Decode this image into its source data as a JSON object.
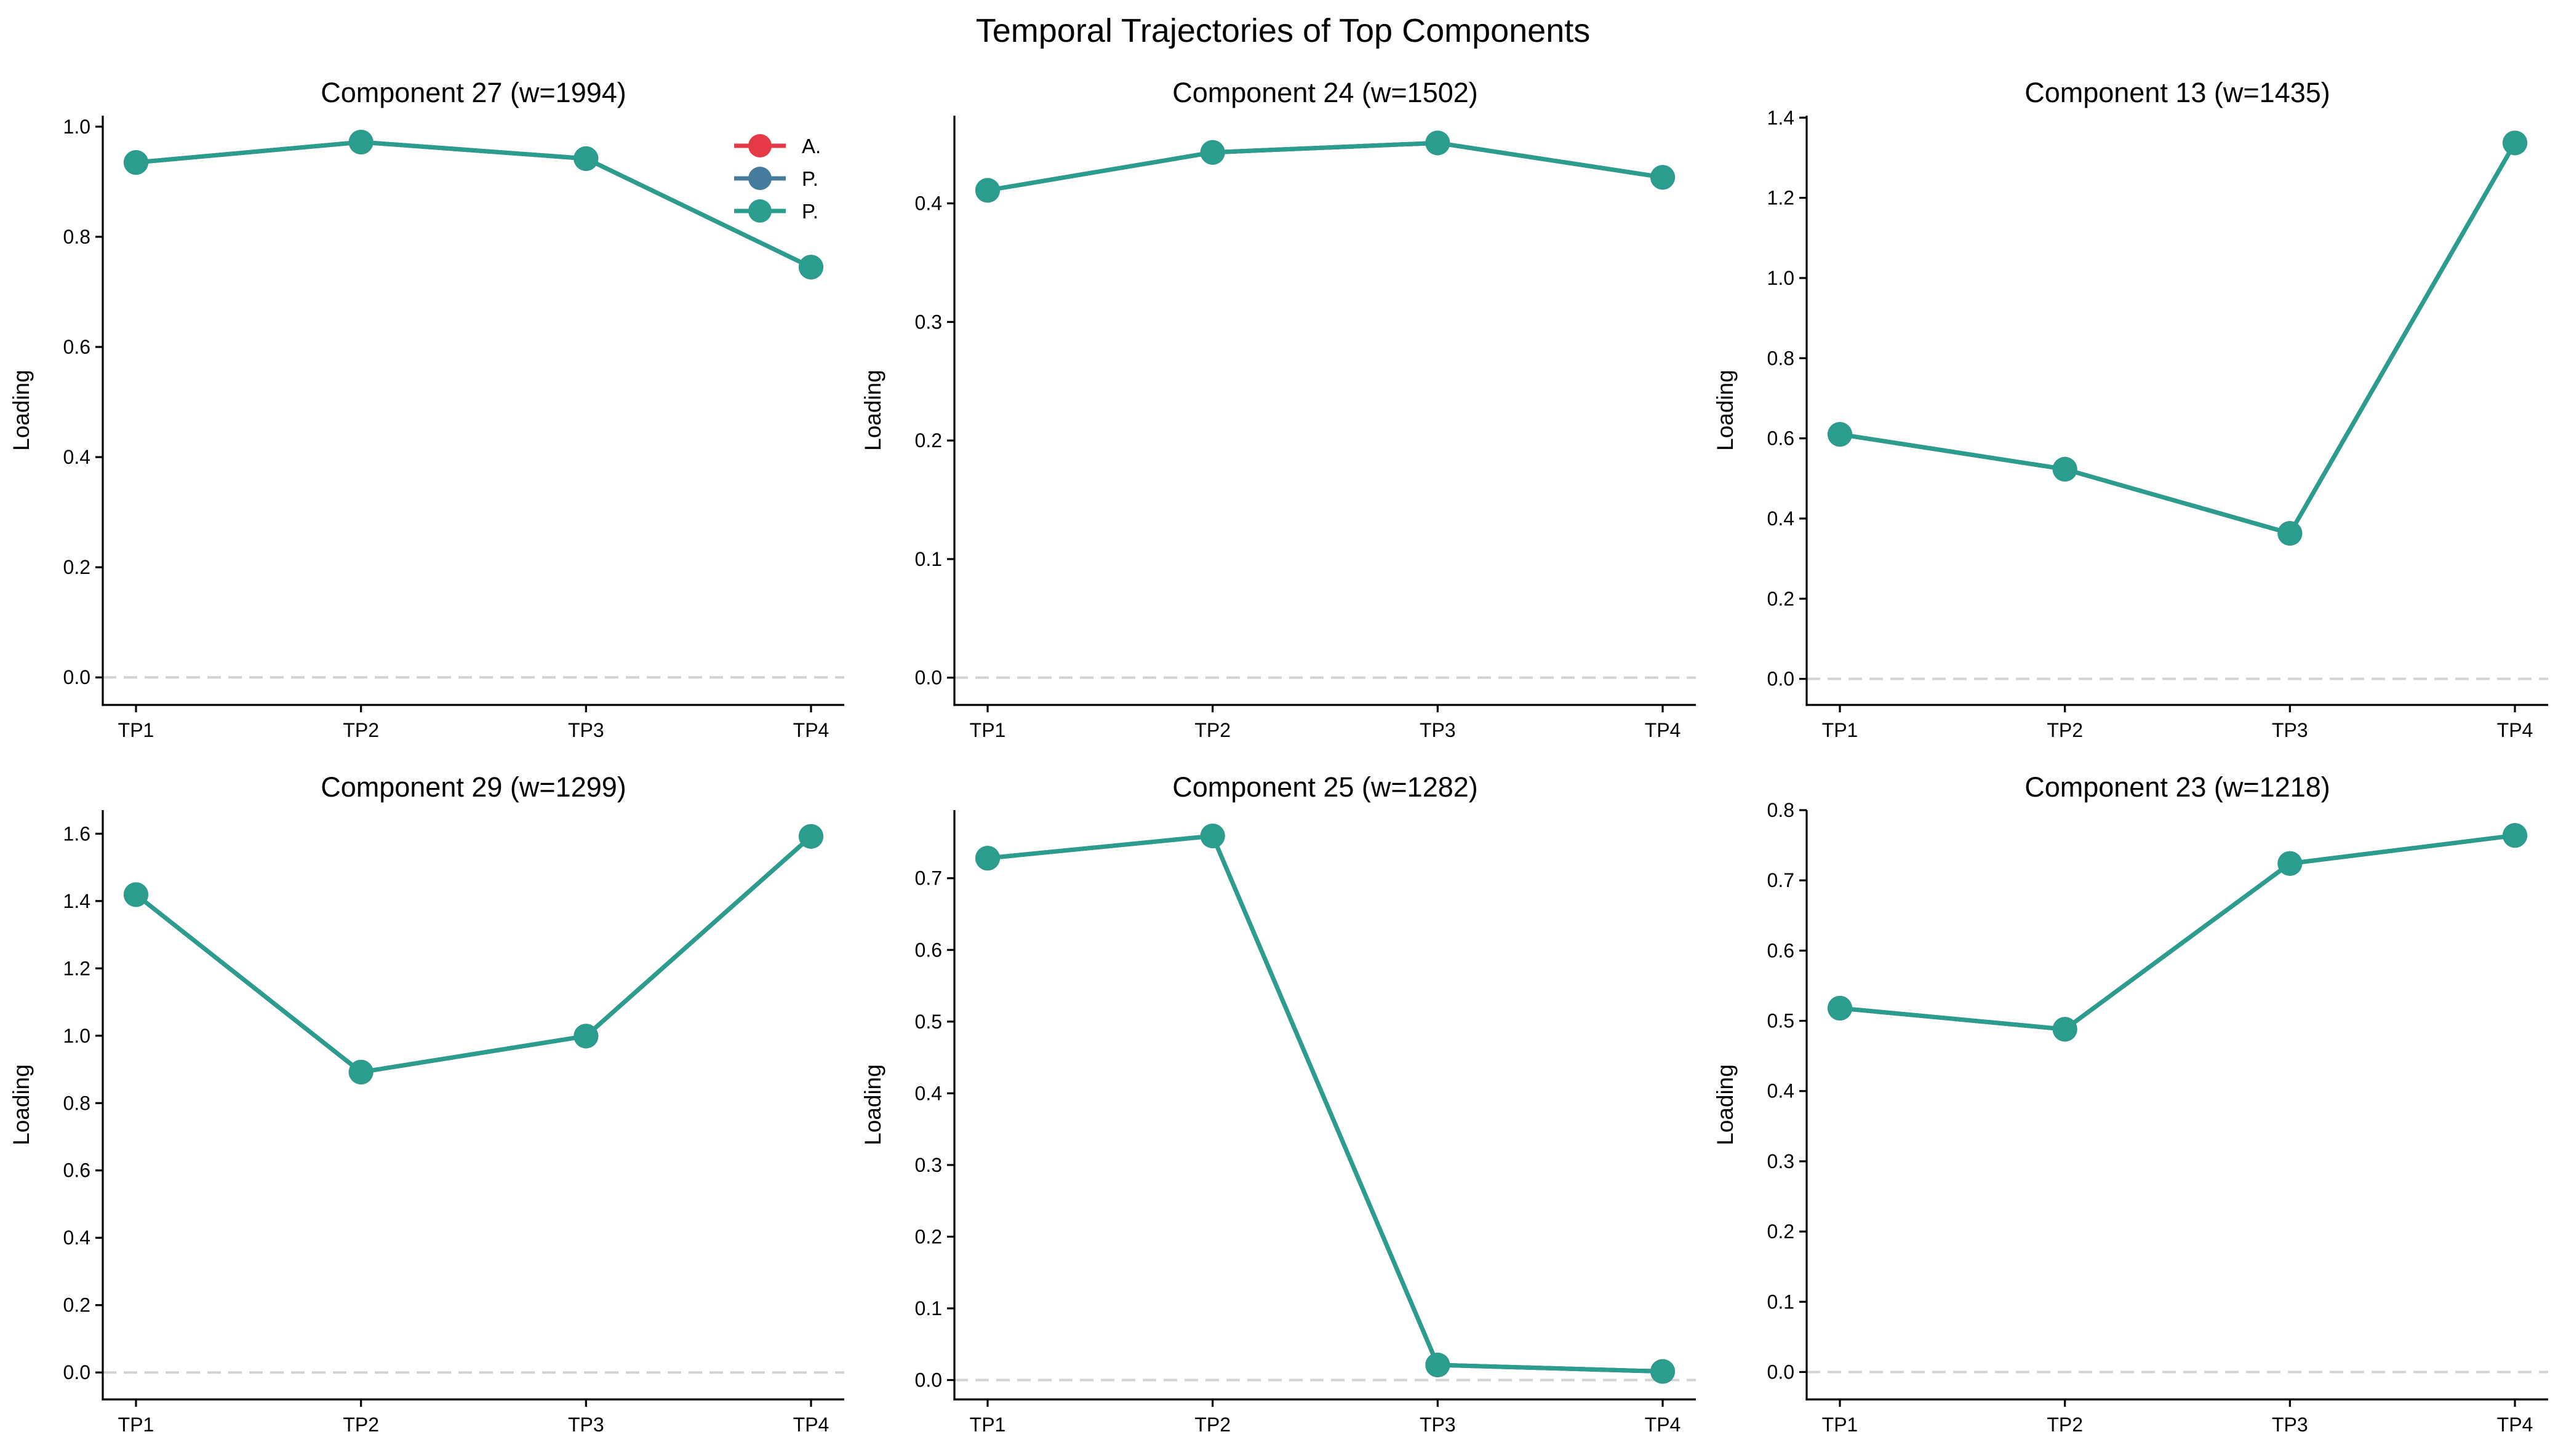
{
  "chart_data": {
    "type": "line",
    "title": "Temporal Trajectories of Top Components",
    "layout": "2x3 grid",
    "legend": {
      "placement": "upper-right of first panel",
      "entries": [
        {
          "label": "A.",
          "color": "#E63946"
        },
        {
          "label": "P.",
          "color": "#457B9D"
        },
        {
          "label": "P.",
          "color": "#2A9D8F"
        }
      ]
    },
    "reference_line": {
      "y": 0,
      "style": "dashed",
      "color": "#D3D3D3"
    },
    "panels": [
      {
        "title": "Component 27 (w=1994)",
        "xlabel": "",
        "ylabel": "Loading",
        "categories": [
          "TP1",
          "TP2",
          "TP3",
          "TP4"
        ],
        "yticks": [
          0.0,
          0.2,
          0.4,
          0.6,
          0.8,
          1.0
        ],
        "ytick_labels": [
          "0.0",
          "0.2",
          "0.4",
          "0.6",
          "0.8",
          "1.0"
        ],
        "ylim": [
          -0.05,
          1.02
        ],
        "show_ylabel": true,
        "series": [
          {
            "name": "A.",
            "color": "#E63946",
            "values": [
              0.935,
              0.972,
              0.942,
              0.745
            ]
          },
          {
            "name": "P.",
            "color": "#457B9D",
            "values": [
              0.935,
              0.972,
              0.942,
              0.745
            ]
          },
          {
            "name": "P.",
            "color": "#2A9D8F",
            "values": [
              0.935,
              0.972,
              0.942,
              0.745
            ]
          }
        ]
      },
      {
        "title": "Component 24 (w=1502)",
        "xlabel": "",
        "ylabel": "Loading",
        "categories": [
          "TP1",
          "TP2",
          "TP3",
          "TP4"
        ],
        "yticks": [
          0.0,
          0.1,
          0.2,
          0.3,
          0.4
        ],
        "ytick_labels": [
          "0.0",
          "0.1",
          "0.2",
          "0.3",
          "0.4"
        ],
        "ylim": [
          -0.023,
          0.474
        ],
        "series": [
          {
            "name": "A.",
            "color": "#E63946",
            "values": [
              0.411,
              0.443,
              0.451,
              0.422
            ]
          },
          {
            "name": "P.",
            "color": "#457B9D",
            "values": [
              0.411,
              0.443,
              0.451,
              0.422
            ]
          },
          {
            "name": "P.",
            "color": "#2A9D8F",
            "values": [
              0.411,
              0.443,
              0.451,
              0.422
            ]
          }
        ]
      },
      {
        "title": "Component 13 (w=1435)",
        "xlabel": "",
        "ylabel": "Loading",
        "categories": [
          "TP1",
          "TP2",
          "TP3",
          "TP4"
        ],
        "yticks": [
          0.0,
          0.2,
          0.4,
          0.6,
          0.8,
          1.0,
          1.2,
          1.4
        ],
        "ytick_labels": [
          "0.0",
          "0.2",
          "0.4",
          "0.6",
          "0.8",
          "1.0",
          "1.2",
          "1.4"
        ],
        "ylim": [
          -0.065,
          1.405
        ],
        "series": [
          {
            "name": "A.",
            "color": "#E63946",
            "values": [
              0.61,
              0.523,
              0.363,
              1.337
            ]
          },
          {
            "name": "P.",
            "color": "#457B9D",
            "values": [
              0.61,
              0.523,
              0.363,
              1.337
            ]
          },
          {
            "name": "P.",
            "color": "#2A9D8F",
            "values": [
              0.61,
              0.523,
              0.363,
              1.337
            ]
          }
        ]
      },
      {
        "title": "Component 29 (w=1299)",
        "xlabel": "",
        "ylabel": "Loading",
        "categories": [
          "TP1",
          "TP2",
          "TP3",
          "TP4"
        ],
        "yticks": [
          0.0,
          0.2,
          0.4,
          0.6,
          0.8,
          1.0,
          1.2,
          1.4,
          1.6
        ],
        "ytick_labels": [
          "0.0",
          "0.2",
          "0.4",
          "0.6",
          "0.8",
          "1.0",
          "1.2",
          "1.4",
          "1.6"
        ],
        "ylim": [
          -0.08,
          1.67
        ],
        "series": [
          {
            "name": "A.",
            "color": "#E63946",
            "values": [
              1.419,
              0.892,
              0.999,
              1.592
            ]
          },
          {
            "name": "P.",
            "color": "#457B9D",
            "values": [
              1.419,
              0.892,
              0.999,
              1.592
            ]
          },
          {
            "name": "P.",
            "color": "#2A9D8F",
            "values": [
              1.419,
              0.892,
              0.999,
              1.592
            ]
          }
        ]
      },
      {
        "title": "Component 25 (w=1282)",
        "xlabel": "",
        "ylabel": "Loading",
        "categories": [
          "TP1",
          "TP2",
          "TP3",
          "TP4"
        ],
        "yticks": [
          0.0,
          0.1,
          0.2,
          0.3,
          0.4,
          0.5,
          0.6,
          0.7
        ],
        "ytick_labels": [
          "0.0",
          "0.1",
          "0.2",
          "0.3",
          "0.4",
          "0.5",
          "0.6",
          "0.7"
        ],
        "ylim": [
          -0.027,
          0.795
        ],
        "series": [
          {
            "name": "A.",
            "color": "#E63946",
            "values": [
              0.728,
              0.759,
              0.021,
              0.012
            ]
          },
          {
            "name": "P.",
            "color": "#457B9D",
            "values": [
              0.728,
              0.759,
              0.021,
              0.012
            ]
          },
          {
            "name": "P.",
            "color": "#2A9D8F",
            "values": [
              0.728,
              0.759,
              0.021,
              0.012
            ]
          }
        ]
      },
      {
        "title": "Component 23 (w=1218)",
        "xlabel": "",
        "ylabel": "Loading",
        "categories": [
          "TP1",
          "TP2",
          "TP3",
          "TP4"
        ],
        "yticks": [
          0.0,
          0.1,
          0.2,
          0.3,
          0.4,
          0.5,
          0.6,
          0.7,
          0.8
        ],
        "ytick_labels": [
          "0.0",
          "0.1",
          "0.2",
          "0.3",
          "0.4",
          "0.5",
          "0.6",
          "0.7",
          "0.8"
        ],
        "ylim": [
          -0.039,
          0.8
        ],
        "series": [
          {
            "name": "A.",
            "color": "#E63946",
            "values": [
              0.518,
              0.488,
              0.724,
              0.764
            ]
          },
          {
            "name": "P.",
            "color": "#457B9D",
            "values": [
              0.518,
              0.488,
              0.724,
              0.764
            ]
          },
          {
            "name": "P.",
            "color": "#2A9D8F",
            "values": [
              0.518,
              0.488,
              0.724,
              0.764
            ]
          }
        ]
      }
    ]
  }
}
